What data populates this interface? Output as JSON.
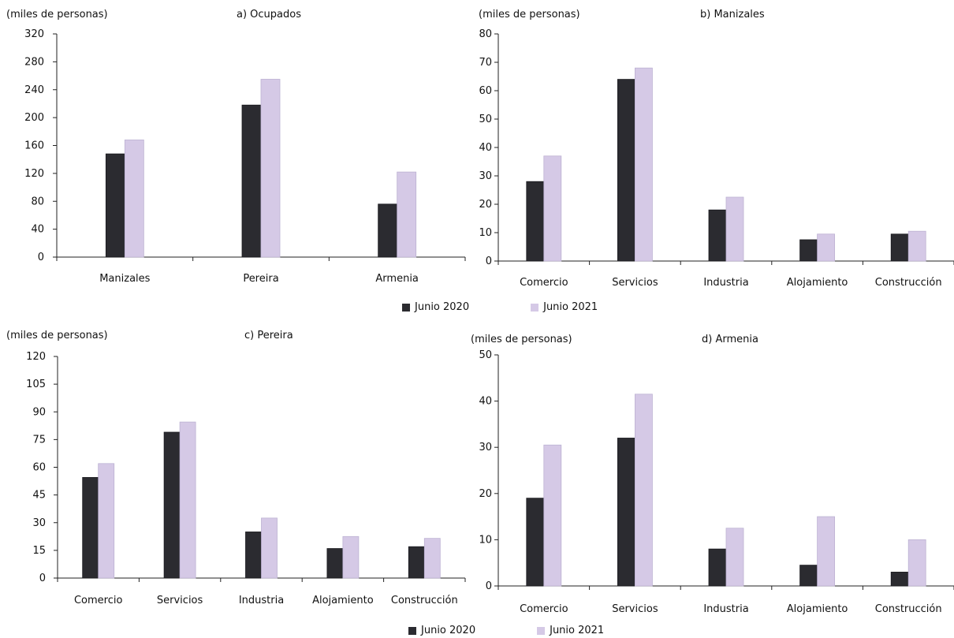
{
  "colors": {
    "junio2020": "#2b2b30",
    "junio2021": "#d5c9e6",
    "junio2021_edge": "#bdb2d3",
    "axis": "#222222"
  },
  "legend_top": {
    "s1": "Junio 2020",
    "s2": "Junio 2021"
  },
  "legend_bottom": {
    "s1": "Junio 2020",
    "s2": "Junio 2021"
  },
  "chart_data": [
    {
      "type": "bar",
      "title": "a) Ocupados",
      "ylabel": "(miles de personas)",
      "categories": [
        "Manizales",
        "Pereira",
        "Armenia"
      ],
      "ylim": [
        0,
        320
      ],
      "yticks": [
        0,
        40,
        80,
        120,
        160,
        200,
        240,
        280,
        320
      ],
      "series": [
        {
          "name": "Junio 2020",
          "values": [
            148,
            218,
            76
          ]
        },
        {
          "name": "Junio 2021",
          "values": [
            168,
            255,
            122
          ]
        }
      ]
    },
    {
      "type": "bar",
      "title": "b) Manizales",
      "ylabel": "(miles de personas)",
      "categories": [
        "Comercio",
        "Servicios",
        "Industria",
        "Alojamiento",
        "Construcción"
      ],
      "ylim": [
        0,
        80
      ],
      "yticks": [
        0,
        10,
        20,
        30,
        40,
        50,
        60,
        70,
        80
      ],
      "series": [
        {
          "name": "Junio 2020",
          "values": [
            28,
            64,
            18,
            7.5,
            9.5
          ]
        },
        {
          "name": "Junio 2021",
          "values": [
            37,
            68,
            22.5,
            9.5,
            10.5
          ]
        }
      ]
    },
    {
      "type": "bar",
      "title": "c) Pereira",
      "ylabel": "(miles de personas)",
      "categories": [
        "Comercio",
        "Servicios",
        "Industria",
        "Alojamiento",
        "Construcción"
      ],
      "ylim": [
        0,
        120
      ],
      "yticks": [
        0,
        15,
        30,
        45,
        60,
        75,
        90,
        105,
        120
      ],
      "series": [
        {
          "name": "Junio 2020",
          "values": [
            54.5,
            79,
            25,
            16,
            17
          ]
        },
        {
          "name": "Junio 2021",
          "values": [
            62,
            84.5,
            32.5,
            22.5,
            21.5
          ]
        }
      ]
    },
    {
      "type": "bar",
      "title": "d) Armenia",
      "ylabel": "(miles de personas)",
      "categories": [
        "Comercio",
        "Servicios",
        "Industria",
        "Alojamiento",
        "Construcción"
      ],
      "ylim": [
        0,
        50
      ],
      "yticks": [
        0,
        10,
        20,
        30,
        40,
        50
      ],
      "series": [
        {
          "name": "Junio 2020",
          "values": [
            19,
            32,
            8,
            4.5,
            3
          ]
        },
        {
          "name": "Junio 2021",
          "values": [
            30.5,
            41.5,
            12.5,
            15,
            10
          ]
        }
      ]
    }
  ]
}
